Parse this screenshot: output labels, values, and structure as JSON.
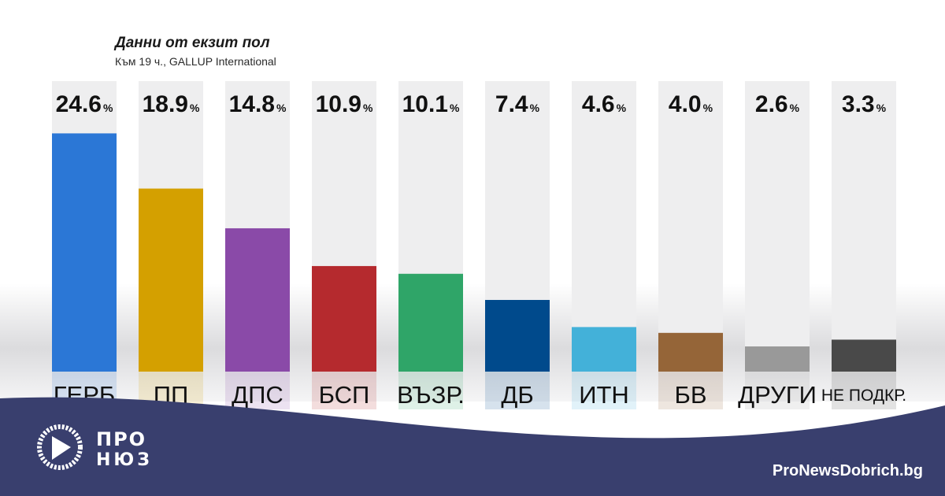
{
  "header": {
    "title": "Данни от екзит пол",
    "subtitle": "Към 19 ч., GALLUP International"
  },
  "chart_data": {
    "type": "bar",
    "categories": [
      "ГЕРБ",
      "ПП",
      "ДПС",
      "БСП",
      "ВЪЗР.",
      "ДБ",
      "ИТН",
      "БВ",
      "ДРУГИ",
      "НЕ ПОДКР."
    ],
    "values": [
      24.6,
      18.9,
      14.8,
      10.9,
      10.1,
      7.4,
      4.6,
      4.0,
      2.6,
      3.3
    ],
    "value_labels": [
      "24.6",
      "18.9",
      "14.8",
      "10.9",
      "10.1",
      "7.4",
      "4.6",
      "4.0",
      "2.6",
      "3.3"
    ],
    "unit": "%",
    "colors": [
      "#2b77d6",
      "#d4a000",
      "#8a4aa8",
      "#b52a2e",
      "#2fa568",
      "#004a8c",
      "#43b1d9",
      "#956538",
      "#999999",
      "#494949"
    ],
    "ylim": [
      0,
      30
    ],
    "grid": false,
    "legend": "none"
  },
  "footer": {
    "logo_top": "ПРО",
    "logo_bottom": "НЮЗ",
    "site": "ProNewsDobrich.bg",
    "band_color": "#393f6e"
  }
}
